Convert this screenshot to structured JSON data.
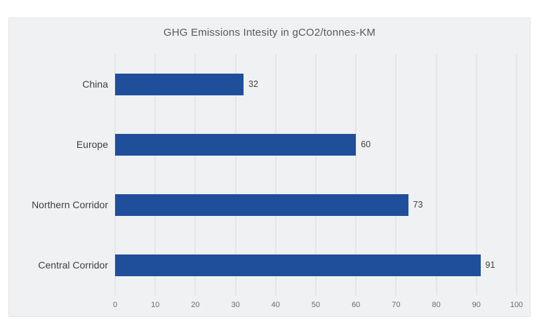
{
  "chart_data": {
    "type": "bar",
    "orientation": "horizontal",
    "title": "GHG Emissions Intesity in gCO2/tonnes-KM",
    "categories": [
      "China",
      "Europe",
      "Northern Corridor",
      "Central Corridor"
    ],
    "values": [
      32,
      60,
      73,
      91
    ],
    "data_labels": [
      "32",
      "60",
      "73",
      "91"
    ],
    "xlabel": "",
    "ylabel": "",
    "xlim": [
      0,
      100
    ],
    "xtick_step": 10,
    "xticks": [
      0,
      10,
      20,
      30,
      40,
      50,
      60,
      70,
      80,
      90,
      100
    ],
    "grid": "vertical",
    "legend": "none",
    "colors": {
      "bar": "#1F4E9B",
      "plot_background": "#F0F1F3",
      "gridline": "#DBDCDE",
      "title_text": "#595959",
      "label_text": "#3F3F3F"
    }
  }
}
